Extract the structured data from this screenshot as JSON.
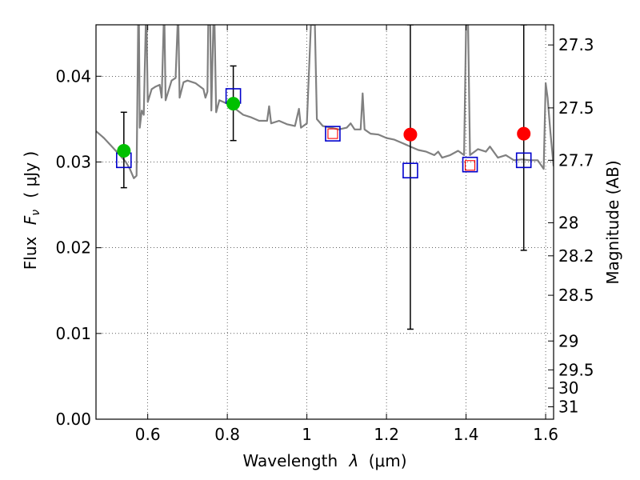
{
  "chart_data": {
    "type": "scatter",
    "xlabel_prefix": "Wavelength",
    "xlabel_symbol": "λ",
    "xlabel_unit": "(μm)",
    "ylabel_prefix": "Flux",
    "ylabel_symbol": "F",
    "ylabel_subscript": "ν",
    "ylabel_unit": "( μJy )",
    "y2label": "Magnitude (AB)",
    "xlim": [
      0.47,
      1.62
    ],
    "ylim": [
      0.0,
      0.046
    ],
    "grid": true,
    "x_ticks": [
      {
        "value": 0.6,
        "label": "0.6"
      },
      {
        "value": 0.8,
        "label": "0.8"
      },
      {
        "value": 1.0,
        "label": "1"
      },
      {
        "value": 1.2,
        "label": "1.2"
      },
      {
        "value": 1.4,
        "label": "1.4"
      },
      {
        "value": 1.6,
        "label": "1.6"
      }
    ],
    "y_ticks": [
      {
        "value": 0.0,
        "label": "0.00"
      },
      {
        "value": 0.01,
        "label": "0.01"
      },
      {
        "value": 0.02,
        "label": "0.02"
      },
      {
        "value": 0.03,
        "label": "0.03"
      },
      {
        "value": 0.04,
        "label": "0.04"
      }
    ],
    "y2_ticks": [
      {
        "mag": 27.3,
        "label": "27.3"
      },
      {
        "mag": 27.5,
        "label": "27.5"
      },
      {
        "mag": 27.7,
        "label": "27.7"
      },
      {
        "mag": 28.0,
        "label": "28"
      },
      {
        "mag": 28.2,
        "label": "28.2"
      },
      {
        "mag": 28.5,
        "label": "28.5"
      },
      {
        "mag": 29.0,
        "label": "29"
      },
      {
        "mag": 29.5,
        "label": "29.5"
      },
      {
        "mag": 30.0,
        "label": "30"
      },
      {
        "mag": 31.0,
        "label": "31"
      }
    ],
    "colors": {
      "model": "#808080",
      "green": "#00c000",
      "red": "#ff0000",
      "blue": "#0000cc",
      "error": "#000000"
    },
    "model_spectrum": [
      [
        0.47,
        0.0336
      ],
      [
        0.49,
        0.0328
      ],
      [
        0.51,
        0.0318
      ],
      [
        0.53,
        0.0308
      ],
      [
        0.545,
        0.03
      ],
      [
        0.555,
        0.0292
      ],
      [
        0.565,
        0.0281
      ],
      [
        0.572,
        0.0284
      ],
      [
        0.576,
        0.046
      ],
      [
        0.578,
        0.046
      ],
      [
        0.58,
        0.034
      ],
      [
        0.585,
        0.036
      ],
      [
        0.59,
        0.0355
      ],
      [
        0.595,
        0.046
      ],
      [
        0.597,
        0.046
      ],
      [
        0.6,
        0.037
      ],
      [
        0.61,
        0.0385
      ],
      [
        0.62,
        0.0388
      ],
      [
        0.63,
        0.039
      ],
      [
        0.635,
        0.0375
      ],
      [
        0.64,
        0.046
      ],
      [
        0.642,
        0.046
      ],
      [
        0.645,
        0.0372
      ],
      [
        0.66,
        0.0395
      ],
      [
        0.67,
        0.0398
      ],
      [
        0.675,
        0.046
      ],
      [
        0.677,
        0.046
      ],
      [
        0.68,
        0.0375
      ],
      [
        0.69,
        0.0393
      ],
      [
        0.7,
        0.0395
      ],
      [
        0.72,
        0.0392
      ],
      [
        0.74,
        0.0385
      ],
      [
        0.745,
        0.0375
      ],
      [
        0.75,
        0.0382
      ],
      [
        0.752,
        0.046
      ],
      [
        0.757,
        0.046
      ],
      [
        0.76,
        0.036
      ],
      [
        0.765,
        0.046
      ],
      [
        0.768,
        0.046
      ],
      [
        0.772,
        0.0358
      ],
      [
        0.78,
        0.0372
      ],
      [
        0.8,
        0.0368
      ],
      [
        0.82,
        0.0362
      ],
      [
        0.84,
        0.0355
      ],
      [
        0.86,
        0.0352
      ],
      [
        0.88,
        0.0348
      ],
      [
        0.9,
        0.0348
      ],
      [
        0.905,
        0.0365
      ],
      [
        0.91,
        0.0345
      ],
      [
        0.93,
        0.0348
      ],
      [
        0.95,
        0.0344
      ],
      [
        0.97,
        0.0342
      ],
      [
        0.98,
        0.0362
      ],
      [
        0.985,
        0.034
      ],
      [
        1.0,
        0.0345
      ],
      [
        1.01,
        0.046
      ],
      [
        1.02,
        0.046
      ],
      [
        1.025,
        0.035
      ],
      [
        1.04,
        0.0342
      ],
      [
        1.06,
        0.034
      ],
      [
        1.08,
        0.0338
      ],
      [
        1.1,
        0.034
      ],
      [
        1.11,
        0.0345
      ],
      [
        1.12,
        0.0338
      ],
      [
        1.135,
        0.0338
      ],
      [
        1.14,
        0.038
      ],
      [
        1.145,
        0.0338
      ],
      [
        1.16,
        0.0333
      ],
      [
        1.18,
        0.0332
      ],
      [
        1.2,
        0.0328
      ],
      [
        1.22,
        0.0326
      ],
      [
        1.24,
        0.0322
      ],
      [
        1.26,
        0.0318
      ],
      [
        1.28,
        0.0314
      ],
      [
        1.3,
        0.0312
      ],
      [
        1.32,
        0.0308
      ],
      [
        1.33,
        0.0312
      ],
      [
        1.34,
        0.0305
      ],
      [
        1.36,
        0.0308
      ],
      [
        1.38,
        0.0313
      ],
      [
        1.395,
        0.0308
      ],
      [
        1.4,
        0.046
      ],
      [
        1.405,
        0.046
      ],
      [
        1.41,
        0.0308
      ],
      [
        1.43,
        0.0315
      ],
      [
        1.45,
        0.0312
      ],
      [
        1.46,
        0.0318
      ],
      [
        1.48,
        0.0305
      ],
      [
        1.5,
        0.0308
      ],
      [
        1.52,
        0.0302
      ],
      [
        1.54,
        0.0303
      ],
      [
        1.56,
        0.0302
      ],
      [
        1.58,
        0.0302
      ],
      [
        1.595,
        0.0292
      ],
      [
        1.6,
        0.0392
      ],
      [
        1.605,
        0.0375
      ],
      [
        1.612,
        0.0335
      ],
      [
        1.62,
        0.0295
      ]
    ],
    "green_points": [
      {
        "x": 0.54,
        "y": 0.0313
      },
      {
        "x": 0.815,
        "y": 0.0368
      }
    ],
    "red_points": [
      {
        "x": 1.26,
        "y": 0.0332
      },
      {
        "x": 1.545,
        "y": 0.0333
      }
    ],
    "blue_squares": [
      {
        "x": 0.54,
        "y": 0.0302
      },
      {
        "x": 0.815,
        "y": 0.0377
      },
      {
        "x": 1.065,
        "y": 0.0333
      },
      {
        "x": 1.26,
        "y": 0.029
      },
      {
        "x": 1.41,
        "y": 0.0297
      },
      {
        "x": 1.545,
        "y": 0.0302
      }
    ],
    "red_squares": [
      {
        "x": 1.065,
        "y": 0.0333
      },
      {
        "x": 1.41,
        "y": 0.0296
      }
    ],
    "error_bars": [
      {
        "x": 0.54,
        "low": 0.027,
        "high": 0.0358
      },
      {
        "x": 0.815,
        "low": 0.0325,
        "high": 0.0412
      },
      {
        "x": 1.26,
        "low": 0.0105,
        "high": 0.046
      },
      {
        "x": 1.545,
        "low": 0.0197,
        "high": 0.046
      }
    ]
  }
}
